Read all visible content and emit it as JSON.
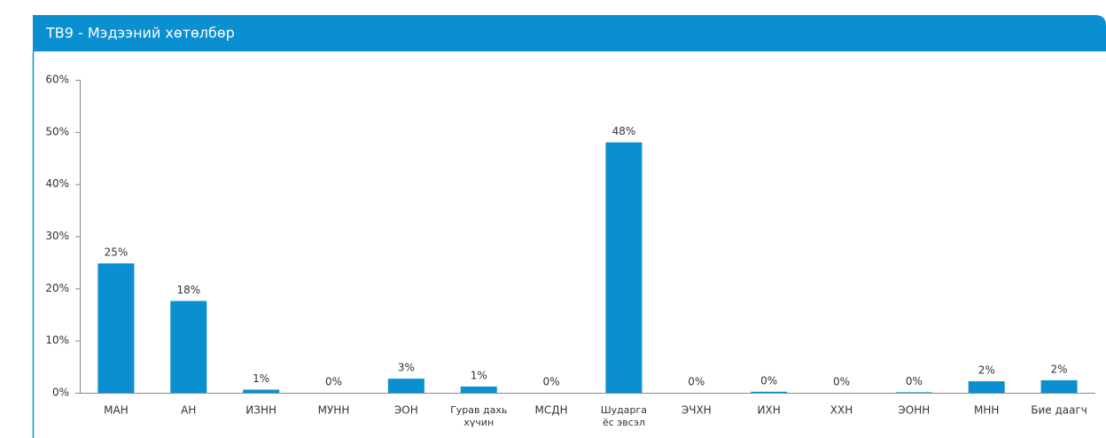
{
  "chart_data": {
    "type": "bar",
    "title": "ТВ9 - Мэдээний хөтөлбөр",
    "categories": [
      "МАН",
      "АН",
      "ИЗНН",
      "МУНН",
      "ЭОН",
      "Гурав дахь\nхүчин",
      "МСДН",
      "Шударга\nёс эвсэл",
      "ЭЧХН",
      "ИХН",
      "ХХН",
      "ЭОНН",
      "МНН",
      "Бие даагч"
    ],
    "values": [
      24.8,
      17.6,
      0.6,
      0,
      2.7,
      1.2,
      0,
      48,
      0,
      0.2,
      0,
      0.1,
      2.2,
      2.4
    ],
    "value_labels": [
      "25%",
      "18%",
      "1%",
      "0%",
      "3%",
      "1%",
      "0%",
      "48%",
      "0%",
      "0%",
      "0%",
      "0%",
      "2%",
      "2%"
    ],
    "color": "#0a8fd0",
    "ylim": [
      0,
      60
    ],
    "yticks": [
      {
        "value": 0,
        "label": "0%"
      },
      {
        "value": 10,
        "label": "10%"
      },
      {
        "value": 20,
        "label": "20%"
      },
      {
        "value": 30,
        "label": "30%"
      },
      {
        "value": 40,
        "label": "40%"
      },
      {
        "value": 50,
        "label": "50%"
      },
      {
        "value": 60,
        "label": "60%"
      }
    ],
    "grid": false
  }
}
